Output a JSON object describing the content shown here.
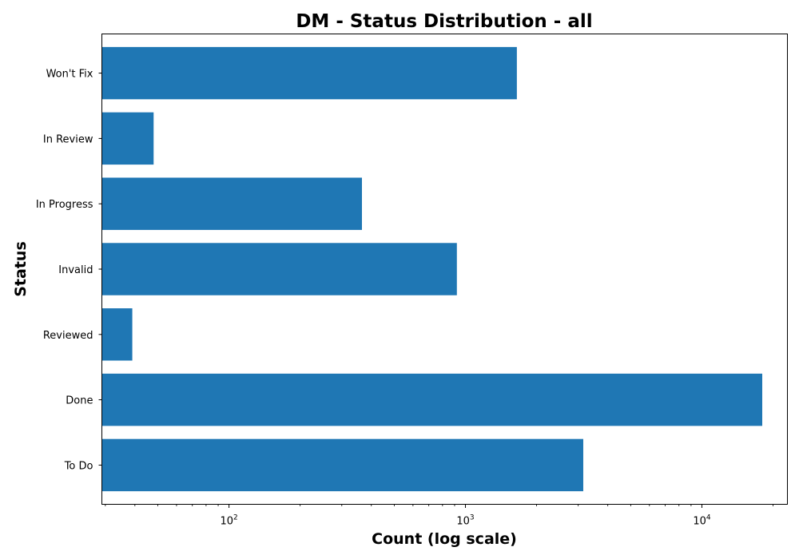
{
  "chart_data": {
    "type": "bar",
    "orientation": "horizontal",
    "title": "DM - Status Distribution - all",
    "xlabel": "Count (log scale)",
    "ylabel": "Status",
    "xscale": "log",
    "xlim": [
      29,
      23000
    ],
    "xticks": [
      {
        "value": 100,
        "base": "10",
        "exp": "2"
      },
      {
        "value": 1000,
        "base": "10",
        "exp": "3"
      },
      {
        "value": 10000,
        "base": "10",
        "exp": "4"
      }
    ],
    "categories": [
      "To Do",
      "Done",
      "Reviewed",
      "Invalid",
      "In Progress",
      "In Review",
      "Won't Fix"
    ],
    "values": [
      3150,
      18000,
      39,
      920,
      365,
      48,
      1650
    ],
    "bar_color": "#1f77b4",
    "grid": false,
    "legend": "none"
  }
}
